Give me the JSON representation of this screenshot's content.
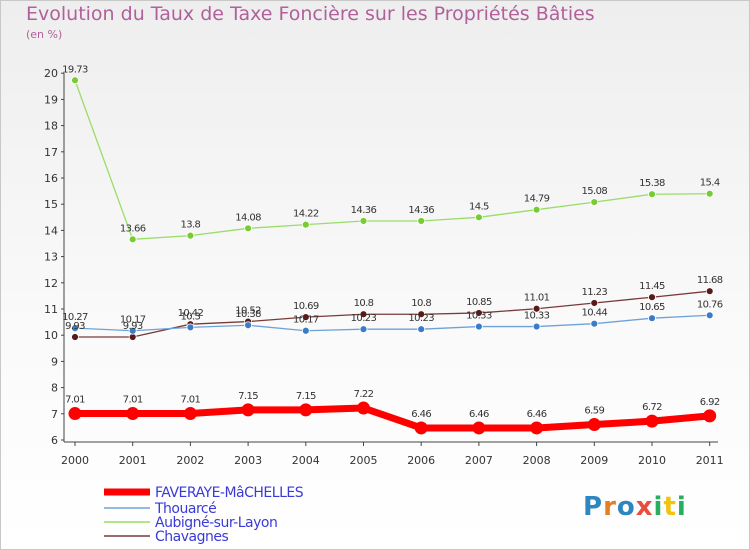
{
  "title": "Evolution du Taux de Taxe Foncière sur les Propriétés Bâties",
  "subtitle": "(en %)",
  "logo": {
    "text": "Proxiti",
    "letters": [
      "P",
      "r",
      "o",
      "x",
      "i",
      "t",
      "i"
    ],
    "colors": [
      "#2e86c1",
      "#e67e22",
      "#2e86c1",
      "#e74c3c",
      "#27ae60",
      "#f1c40f",
      "#27ae60"
    ]
  },
  "chart_data": {
    "type": "line",
    "title": "Evolution du Taux de Taxe Foncière sur les Propriétés Bâties",
    "ylabel": "(en %)",
    "xlabel": "",
    "ylim": [
      6,
      20
    ],
    "yticks": [
      6,
      7,
      8,
      9,
      10,
      11,
      12,
      13,
      14,
      15,
      16,
      17,
      18,
      19,
      20
    ],
    "categories": [
      "2000",
      "2001",
      "2002",
      "2003",
      "2004",
      "2005",
      "2006",
      "2007",
      "2008",
      "2009",
      "2010",
      "2011"
    ],
    "legend_position": "bottom-left",
    "grid": false,
    "series": [
      {
        "name": "FAVERAYE-MâCHELLES",
        "color": "#ff0000",
        "marker_color": "#ff0000",
        "values": [
          7.01,
          7.01,
          7.01,
          7.15,
          7.15,
          7.22,
          6.46,
          6.46,
          6.46,
          6.59,
          6.72,
          6.92
        ],
        "labels": [
          "7.01",
          "7.01",
          "7.01",
          "7.15",
          "7.15",
          "7.22",
          "6.46",
          "6.46",
          "6.46",
          "6.59",
          "6.72",
          "6.92"
        ]
      },
      {
        "name": "Thouarcé",
        "color": "#6fa3d8",
        "marker_color": "#3a7cc8",
        "values": [
          10.27,
          10.17,
          10.3,
          10.38,
          10.17,
          10.23,
          10.23,
          10.33,
          10.33,
          10.44,
          10.65,
          10.76
        ],
        "labels": [
          "10.27",
          "10.17",
          "10.3",
          "10.38",
          "10.17",
          "10.23",
          "10.23",
          "10.33",
          "10.33",
          "10.44",
          "10.65",
          "10.76"
        ]
      },
      {
        "name": "Aubigné-sur-Layon",
        "color": "#99dd66",
        "marker_color": "#77cc33",
        "values": [
          19.73,
          13.66,
          13.8,
          14.08,
          14.22,
          14.36,
          14.36,
          14.5,
          14.79,
          15.08,
          15.38,
          15.4
        ],
        "labels": [
          "19.73",
          "13.66",
          "13.8",
          "14.08",
          "14.22",
          "14.36",
          "14.36",
          "14.5",
          "14.79",
          "15.08",
          "15.38",
          "15.4"
        ]
      },
      {
        "name": "Chavagnes",
        "color": "#7a3a3a",
        "marker_color": "#5a1a1a",
        "values": [
          9.93,
          9.93,
          10.42,
          10.52,
          10.69,
          10.8,
          10.8,
          10.85,
          11.01,
          11.23,
          11.45,
          11.68
        ],
        "labels": [
          "9.93",
          "9.93",
          "10.42",
          "10.52",
          "10.69",
          "10.8",
          "10.8",
          "10.85",
          "11.01",
          "11.23",
          "11.45",
          "11.68"
        ]
      }
    ]
  }
}
